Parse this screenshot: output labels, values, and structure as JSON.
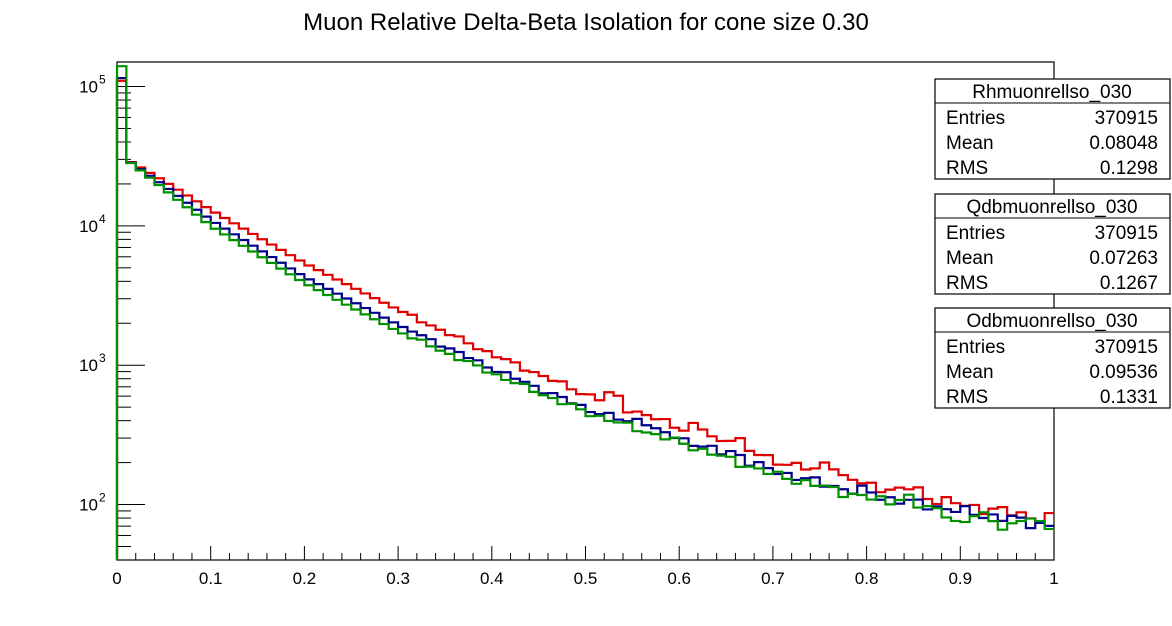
{
  "chart_data": {
    "type": "step-histogram",
    "title": "Muon Relative Delta-Beta Isolation for cone size 0.30",
    "xlabel": "",
    "ylabel": "",
    "xlim": [
      0,
      1
    ],
    "ylim": [
      40,
      150000
    ],
    "y_scale": "log",
    "x_ticks": [
      "0",
      "0.1",
      "0.2",
      "0.3",
      "0.4",
      "0.5",
      "0.6",
      "0.7",
      "0.8",
      "0.9",
      "1"
    ],
    "y_ticks": [
      {
        "base": "10",
        "exp": "2",
        "value": 100
      },
      {
        "base": "10",
        "exp": "3",
        "value": 1000
      },
      {
        "base": "10",
        "exp": "4",
        "value": 10000
      },
      {
        "base": "10",
        "exp": "5",
        "value": 100000
      }
    ],
    "bins": 100,
    "series": [
      {
        "name": "Rhmuonrellso_030",
        "color": "#e00000",
        "first_bin": 110000,
        "anchors": [
          [
            0.01,
            30000
          ],
          [
            0.05,
            21000
          ],
          [
            0.1,
            13000
          ],
          [
            0.2,
            5400
          ],
          [
            0.3,
            2500
          ],
          [
            0.4,
            1200
          ],
          [
            0.5,
            620
          ],
          [
            0.6,
            360
          ],
          [
            0.7,
            210
          ],
          [
            0.8,
            140
          ],
          [
            0.9,
            100
          ],
          [
            1.0,
            78
          ]
        ],
        "bumps": [
          [
            0.53,
            1.15
          ],
          [
            0.62,
            1.12
          ],
          [
            0.66,
            1.15
          ],
          [
            0.76,
            1.2
          ],
          [
            0.85,
            1.1
          ]
        ],
        "stats": {
          "entries": "370915",
          "mean": "0.08048",
          "rms": "0.1298"
        }
      },
      {
        "name": "Qdbmuonrellso_030",
        "color": "#00008b",
        "first_bin": 115000,
        "anchors": [
          [
            0.01,
            30000
          ],
          [
            0.05,
            19500
          ],
          [
            0.1,
            11000
          ],
          [
            0.2,
            4300
          ],
          [
            0.3,
            1950
          ],
          [
            0.4,
            950
          ],
          [
            0.5,
            490
          ],
          [
            0.6,
            300
          ],
          [
            0.7,
            175
          ],
          [
            0.8,
            118
          ],
          [
            0.9,
            90
          ],
          [
            1.0,
            70
          ]
        ],
        "bumps": [
          [
            0.56,
            1.1
          ],
          [
            0.66,
            1.08
          ],
          [
            0.8,
            1.05
          ]
        ],
        "stats": {
          "entries": "370915",
          "mean": "0.07263",
          "rms": "0.1267"
        }
      },
      {
        "name": "Odbmuonrellso_030",
        "color": "#009000",
        "first_bin": 140000,
        "anchors": [
          [
            0.01,
            30000
          ],
          [
            0.05,
            18500
          ],
          [
            0.1,
            10000
          ],
          [
            0.2,
            3900
          ],
          [
            0.3,
            1750
          ],
          [
            0.4,
            880
          ],
          [
            0.5,
            460
          ],
          [
            0.6,
            280
          ],
          [
            0.7,
            165
          ],
          [
            0.8,
            112
          ],
          [
            0.9,
            86
          ],
          [
            1.0,
            74
          ]
        ],
        "bumps": [
          [
            0.84,
            1.12
          ],
          [
            0.9,
            0.85
          ],
          [
            0.95,
            0.86
          ]
        ],
        "stats": {
          "entries": "370915",
          "mean": "0.09536",
          "rms": "0.1331"
        }
      }
    ]
  },
  "stats_boxes": [
    {
      "title": "Rhmuonrellso_030",
      "entries_label": "Entries",
      "entries": "370915",
      "mean_label": "Mean",
      "mean": "0.08048",
      "rms_label": "RMS",
      "rms": "0.1298"
    },
    {
      "title": "Qdbmuonrellso_030",
      "entries_label": "Entries",
      "entries": "370915",
      "mean_label": "Mean",
      "mean": "0.07263",
      "rms_label": "RMS",
      "rms": "0.1267"
    },
    {
      "title": "Odbmuonrellso_030",
      "entries_label": "Entries",
      "entries": "370915",
      "mean_label": "Mean",
      "mean": "0.09536",
      "rms_label": "RMS",
      "rms": "0.1331"
    }
  ]
}
